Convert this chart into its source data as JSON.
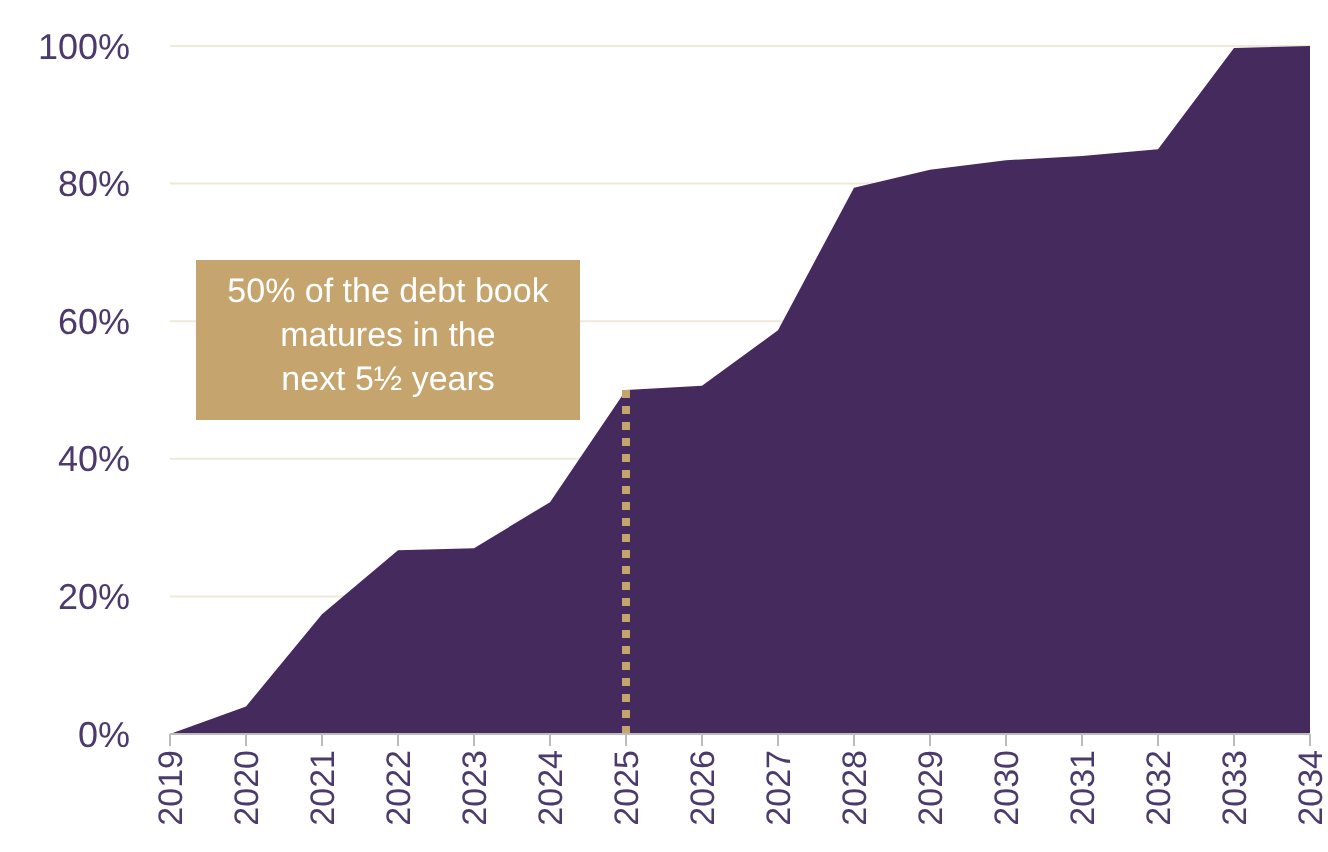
{
  "chart_data": {
    "type": "area",
    "x": [
      2019,
      2020,
      2021,
      2022,
      2023,
      2024,
      2025,
      2026,
      2027,
      2028,
      2029,
      2030,
      2031,
      2032,
      2033,
      2034
    ],
    "series": [
      {
        "color": "#452a5e",
        "values": [
          0,
          4,
          17.4,
          26.7,
          27,
          33.7,
          50,
          50.6,
          58.7,
          79.4,
          82,
          83.4,
          84,
          85,
          99.7,
          100
        ]
      }
    ],
    "xlim": [
      2019,
      2034
    ],
    "xticks": [
      2019,
      2020,
      2021,
      2022,
      2023,
      2024,
      2025,
      2026,
      2027,
      2028,
      2029,
      2030,
      2031,
      2032,
      2033,
      2034
    ],
    "ylim": [
      0,
      100
    ],
    "yticks": [
      {
        "value": 0,
        "label": "0%"
      },
      {
        "value": 20,
        "label": "20%"
      },
      {
        "value": 40,
        "label": "40%"
      },
      {
        "value": 60,
        "label": "60%"
      },
      {
        "value": 80,
        "label": "80%"
      },
      {
        "value": 100,
        "label": "100%"
      }
    ],
    "grid": "y",
    "ref_lines": [
      {
        "axis": "x",
        "value": 2025,
        "color": "#c5a46d",
        "line_style": "dotted"
      }
    ],
    "annotations": [
      "50% of the debt book\nmatures in the\nnext 5½ years"
    ]
  }
}
